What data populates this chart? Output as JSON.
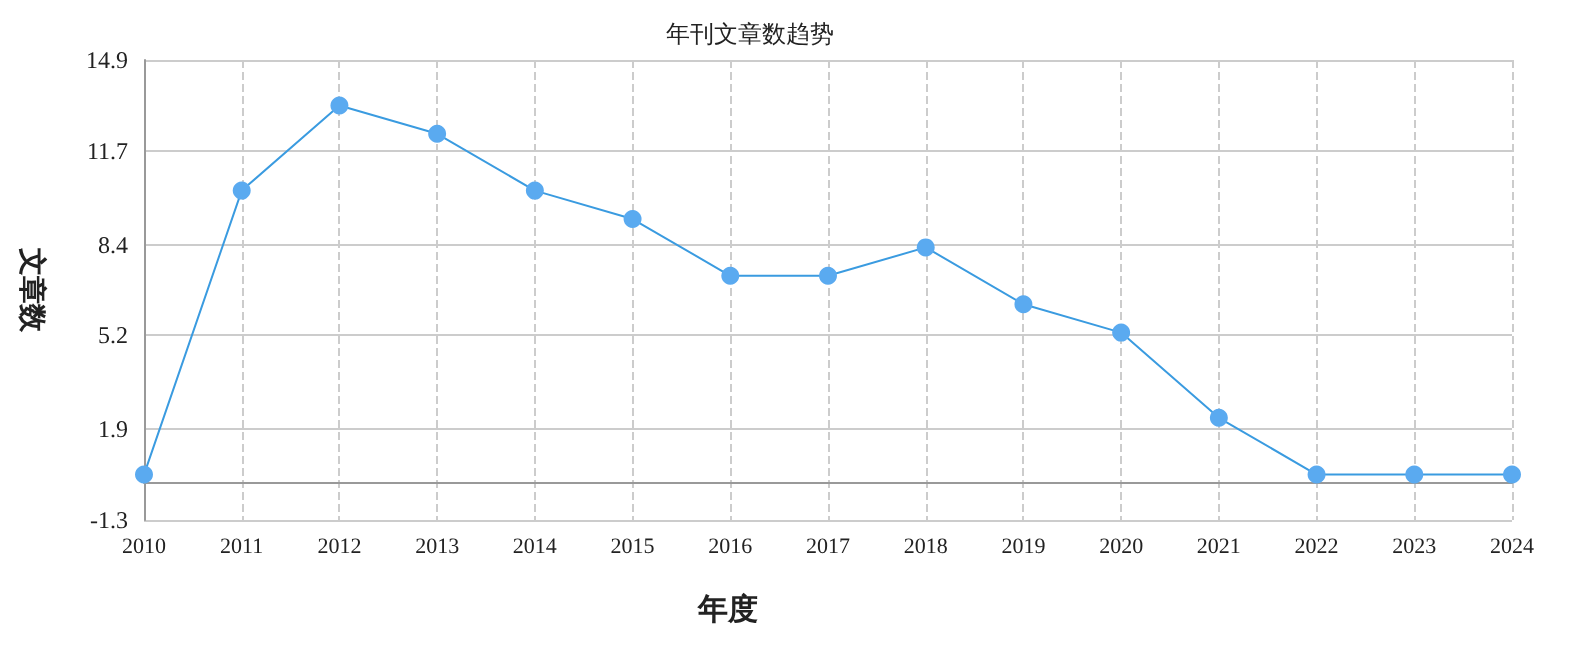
{
  "chart_data": {
    "type": "line",
    "title": "年刊文章数趋势",
    "xlabel": "年度",
    "ylabel": "文章数",
    "categories": [
      "2010",
      "2011",
      "2012",
      "2013",
      "2014",
      "2015",
      "2016",
      "2017",
      "2018",
      "2019",
      "2020",
      "2021",
      "2022",
      "2023",
      "2024"
    ],
    "series": [
      {
        "color": "#5aaaf0",
        "values": [
          0.3,
          10.3,
          13.3,
          12.3,
          10.3,
          9.3,
          7.3,
          7.3,
          8.3,
          6.3,
          5.3,
          2.3,
          0.3,
          0.3,
          0.3
        ]
      }
    ],
    "ylim": [
      -1.3,
      14.9
    ],
    "yticks": [
      -1.3,
      1.9,
      5.2,
      8.4,
      11.7,
      14.9
    ],
    "grid": true,
    "marker": "circle",
    "line_style": "solid"
  }
}
